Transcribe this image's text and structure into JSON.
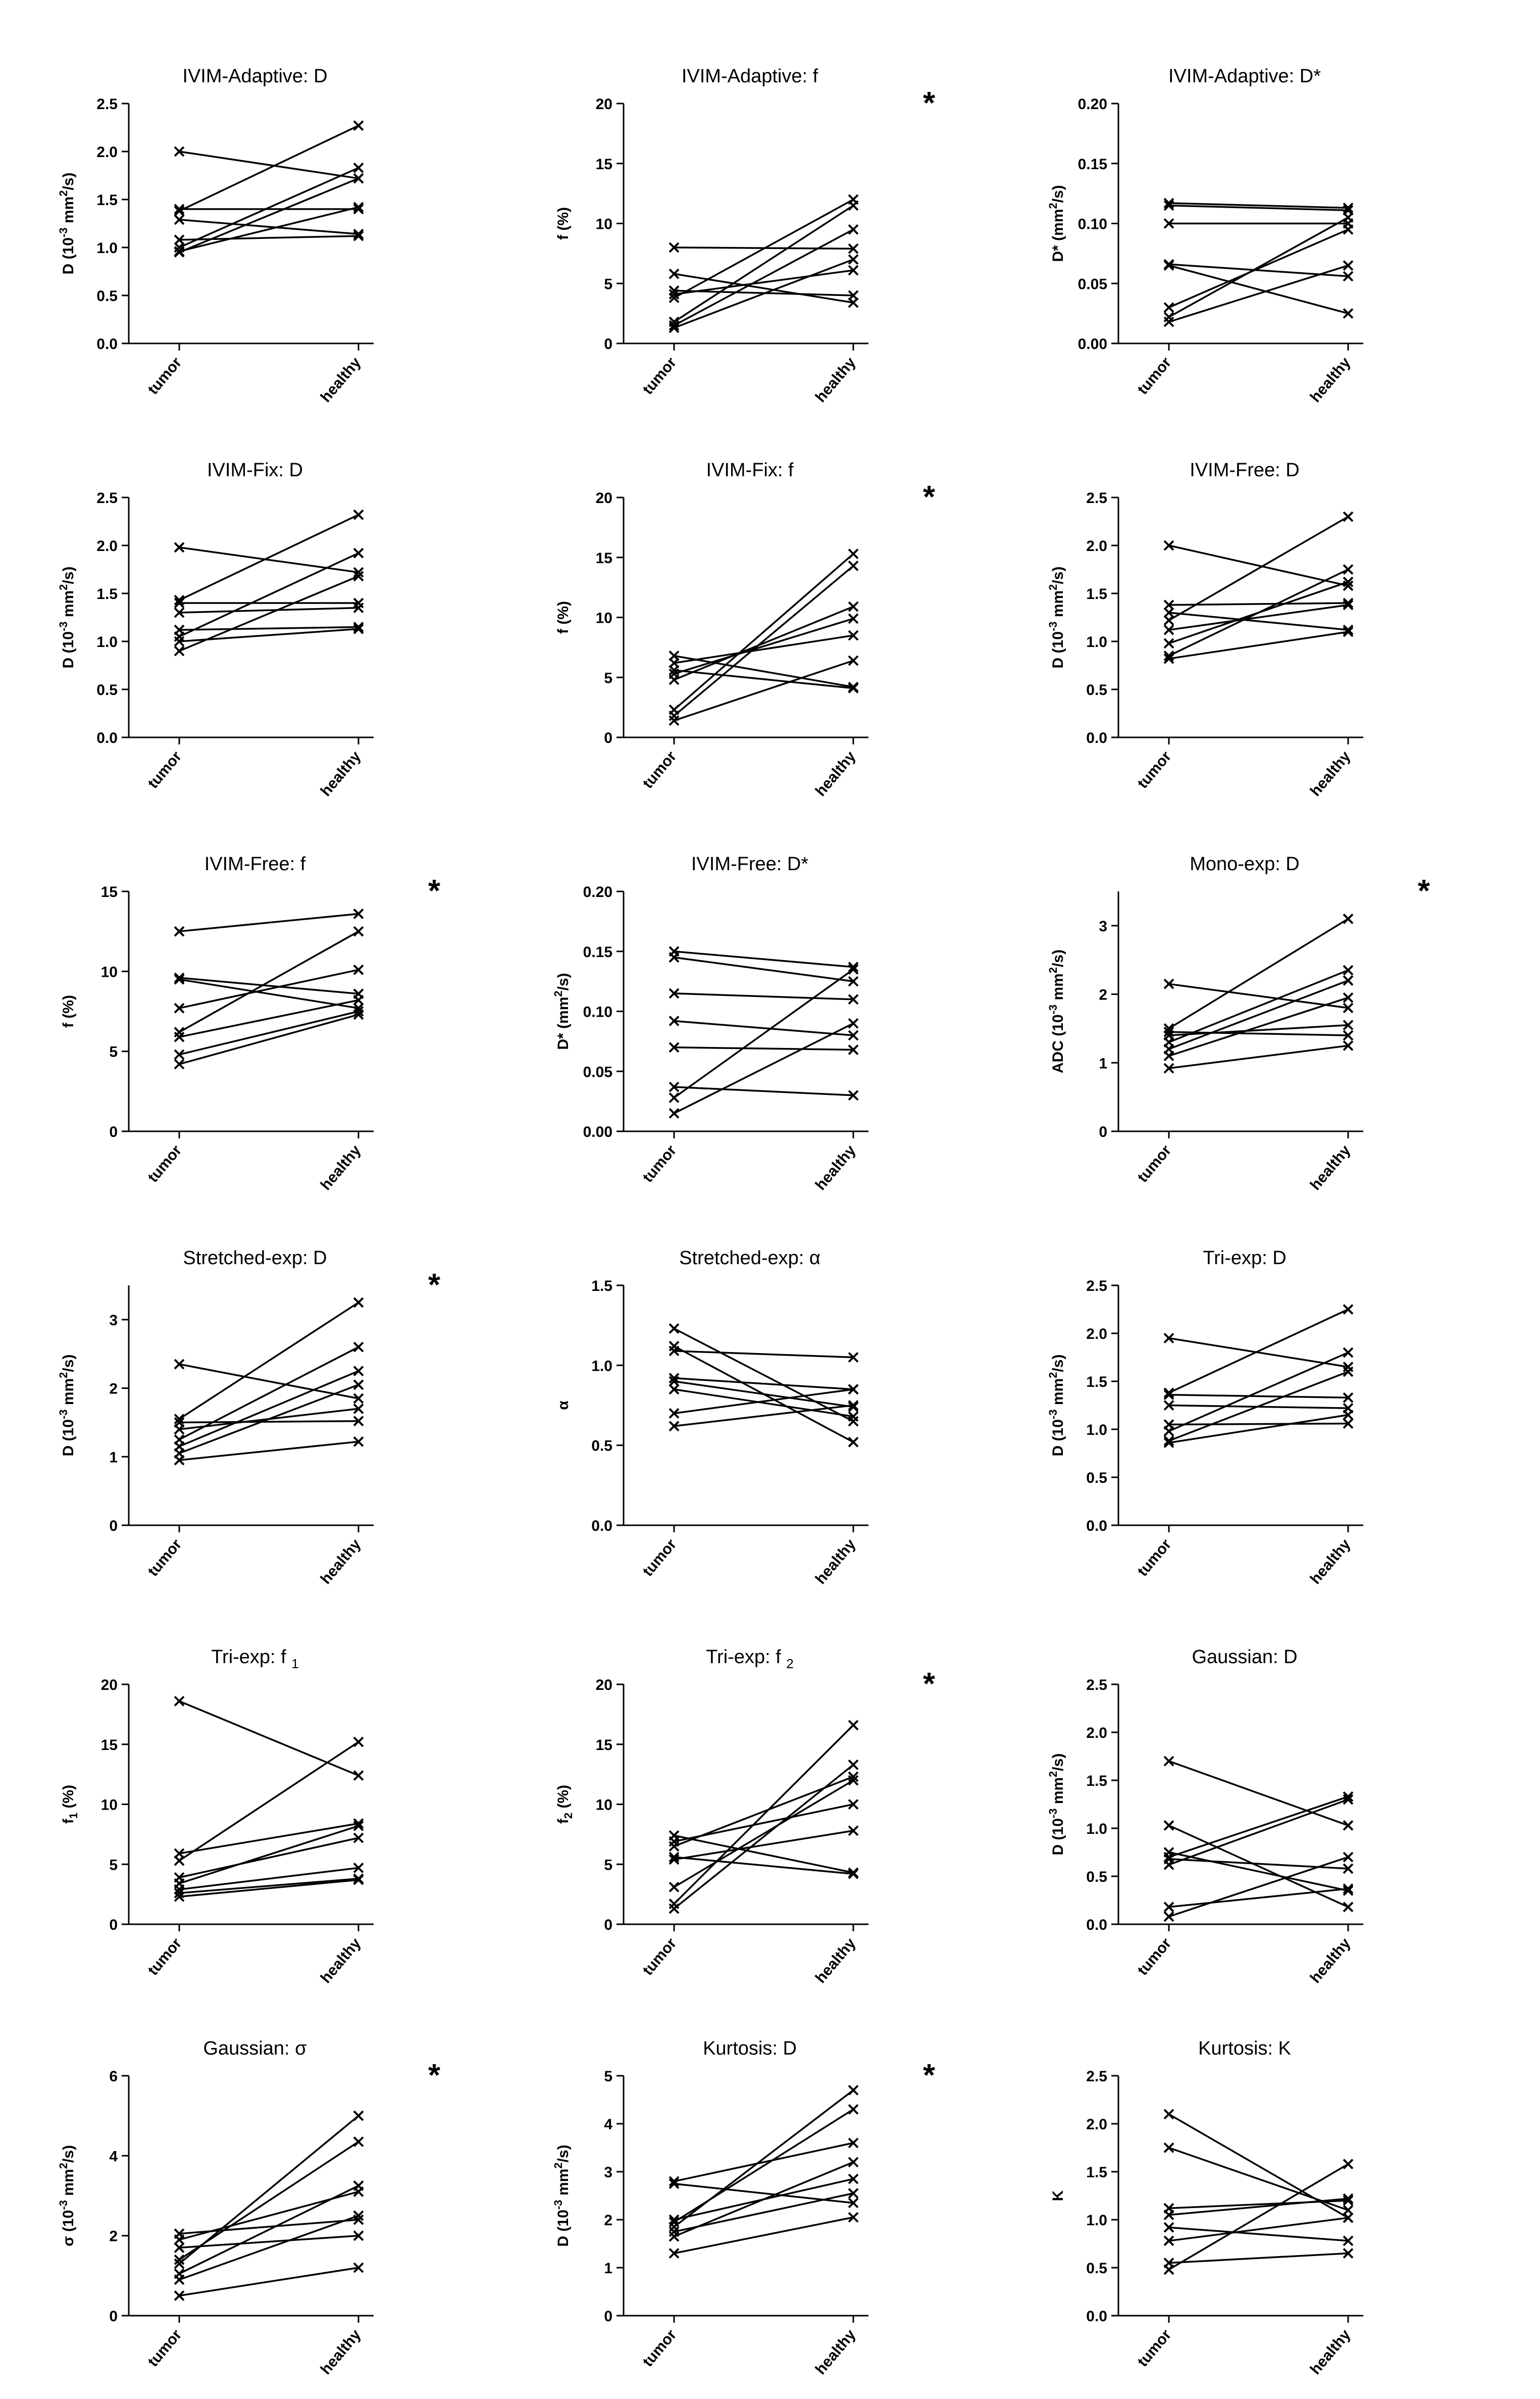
{
  "chart_data": [
    {
      "type": "line",
      "title": "IVIM-Adaptive: D",
      "significant": false,
      "ylabel": {
        "pre": "D (10",
        "sup": "-3",
        "post": " mm",
        "sup2": "2",
        "tail": "/s)"
      },
      "categories": [
        "tumor",
        "healthy"
      ],
      "ylim": [
        0,
        2.5
      ],
      "yticks": [
        "0.0",
        "0.5",
        "1.0",
        "1.5",
        "2.0",
        "2.5"
      ],
      "pairs": [
        [
          2.0,
          1.72
        ],
        [
          1.38,
          2.27
        ],
        [
          1.4,
          1.4
        ],
        [
          1.29,
          1.14
        ],
        [
          1.08,
          1.12
        ],
        [
          1.0,
          1.83
        ],
        [
          0.96,
          1.42
        ],
        [
          0.95,
          1.72
        ]
      ]
    },
    {
      "type": "line",
      "title": "IVIM-Adaptive: f",
      "significant": true,
      "ylabel": {
        "pre": "f (%)"
      },
      "categories": [
        "tumor",
        "healthy"
      ],
      "ylim": [
        0,
        20
      ],
      "yticks": [
        "0",
        "5",
        "10",
        "15",
        "20"
      ],
      "pairs": [
        [
          8.0,
          7.9
        ],
        [
          5.8,
          3.4
        ],
        [
          4.4,
          4.0
        ],
        [
          4.1,
          6.1
        ],
        [
          3.8,
          12.0
        ],
        [
          1.8,
          11.5
        ],
        [
          1.5,
          9.5
        ],
        [
          1.3,
          7.0
        ]
      ]
    },
    {
      "type": "line",
      "title": "IVIM-Adaptive: D*",
      "significant": false,
      "ylabel": {
        "pre": "D* (mm",
        "sup": "2",
        "post": "/s)"
      },
      "categories": [
        "tumor",
        "healthy"
      ],
      "ylim": [
        0,
        0.2
      ],
      "yticks": [
        "0.00",
        "0.05",
        "0.10",
        "0.15",
        "0.20"
      ],
      "pairs": [
        [
          0.117,
          0.113
        ],
        [
          0.115,
          0.111
        ],
        [
          0.1,
          0.1
        ],
        [
          0.066,
          0.056
        ],
        [
          0.065,
          0.025
        ],
        [
          0.03,
          0.095
        ],
        [
          0.022,
          0.105
        ],
        [
          0.018,
          0.065
        ]
      ]
    },
    {
      "type": "line",
      "title": "IVIM-Fix: D",
      "significant": false,
      "ylabel": {
        "pre": "D (10",
        "sup": "-3",
        "post": " mm",
        "sup2": "2",
        "tail": "/s)"
      },
      "categories": [
        "tumor",
        "healthy"
      ],
      "ylim": [
        0,
        2.5
      ],
      "yticks": [
        "0.0",
        "0.5",
        "1.0",
        "1.5",
        "2.0",
        "2.5"
      ],
      "pairs": [
        [
          1.98,
          1.72
        ],
        [
          1.43,
          2.32
        ],
        [
          1.4,
          1.4
        ],
        [
          1.3,
          1.35
        ],
        [
          1.12,
          1.15
        ],
        [
          1.05,
          1.92
        ],
        [
          1.0,
          1.13
        ],
        [
          0.9,
          1.68
        ]
      ]
    },
    {
      "type": "line",
      "title": "IVIM-Fix: f",
      "significant": true,
      "ylabel": {
        "pre": "f (%)"
      },
      "categories": [
        "tumor",
        "healthy"
      ],
      "ylim": [
        0,
        20
      ],
      "yticks": [
        "0",
        "5",
        "10",
        "15",
        "20"
      ],
      "pairs": [
        [
          6.8,
          4.2
        ],
        [
          6.2,
          8.5
        ],
        [
          5.6,
          4.1
        ],
        [
          5.3,
          9.9
        ],
        [
          4.8,
          10.9
        ],
        [
          2.3,
          15.3
        ],
        [
          1.8,
          14.3
        ],
        [
          1.4,
          6.4
        ]
      ]
    },
    {
      "type": "line",
      "title": "IVIM-Free: D",
      "significant": false,
      "ylabel": {
        "pre": "D (10",
        "sup": "-3",
        "post": " mm",
        "sup2": "2",
        "tail": "/s)"
      },
      "categories": [
        "tumor",
        "healthy"
      ],
      "ylim": [
        0,
        2.5
      ],
      "yticks": [
        "0.0",
        "0.5",
        "1.0",
        "1.5",
        "2.0",
        "2.5"
      ],
      "pairs": [
        [
          2.0,
          1.58
        ],
        [
          1.38,
          1.4
        ],
        [
          1.3,
          1.12
        ],
        [
          1.22,
          2.3
        ],
        [
          1.12,
          1.38
        ],
        [
          0.98,
          1.62
        ],
        [
          0.85,
          1.75
        ],
        [
          0.82,
          1.1
        ]
      ]
    },
    {
      "type": "line",
      "title": "IVIM-Free: f",
      "significant": true,
      "ylabel": {
        "pre": "f (%)"
      },
      "categories": [
        "tumor",
        "healthy"
      ],
      "ylim": [
        0,
        15
      ],
      "yticks": [
        "0",
        "5",
        "10",
        "15"
      ],
      "pairs": [
        [
          12.5,
          13.6
        ],
        [
          9.6,
          8.6
        ],
        [
          9.5,
          7.7
        ],
        [
          7.7,
          10.1
        ],
        [
          6.2,
          12.5
        ],
        [
          5.9,
          8.2
        ],
        [
          4.8,
          7.5
        ],
        [
          4.2,
          7.3
        ]
      ]
    },
    {
      "type": "line",
      "title": "IVIM-Free: D*",
      "significant": false,
      "ylabel": {
        "pre": "D* (mm",
        "sup": "2",
        "post": "/s)"
      },
      "categories": [
        "tumor",
        "healthy"
      ],
      "ylim": [
        0,
        0.2
      ],
      "yticks": [
        "0.00",
        "0.05",
        "0.10",
        "0.15",
        "0.20"
      ],
      "pairs": [
        [
          0.15,
          0.137
        ],
        [
          0.145,
          0.125
        ],
        [
          0.115,
          0.11
        ],
        [
          0.092,
          0.08
        ],
        [
          0.07,
          0.068
        ],
        [
          0.037,
          0.03
        ],
        [
          0.028,
          0.135
        ],
        [
          0.015,
          0.09
        ]
      ]
    },
    {
      "type": "line",
      "title": "Mono-exp: D",
      "significant": true,
      "ylabel": {
        "pre": "ADC (10",
        "sup": "-3",
        "post": " mm",
        "sup2": "2",
        "tail": "/s)"
      },
      "categories": [
        "tumor",
        "healthy"
      ],
      "ylim": [
        0,
        3.5
      ],
      "yticks": [
        "0",
        "1",
        "2",
        "3"
      ],
      "pairs": [
        [
          2.15,
          1.8
        ],
        [
          1.5,
          3.1
        ],
        [
          1.45,
          1.4
        ],
        [
          1.4,
          1.55
        ],
        [
          1.3,
          2.35
        ],
        [
          1.2,
          2.2
        ],
        [
          1.1,
          1.95
        ],
        [
          0.92,
          1.25
        ]
      ]
    },
    {
      "type": "line",
      "title": "Stretched-exp: D",
      "significant": true,
      "ylabel": {
        "pre": "D (10",
        "sup": "-3",
        "post": " mm",
        "sup2": "2",
        "tail": "/s)"
      },
      "categories": [
        "tumor",
        "healthy"
      ],
      "ylim": [
        0,
        3.5
      ],
      "yticks": [
        "0",
        "1",
        "2",
        "3"
      ],
      "pairs": [
        [
          2.35,
          1.85
        ],
        [
          1.55,
          3.25
        ],
        [
          1.5,
          1.52
        ],
        [
          1.4,
          1.7
        ],
        [
          1.25,
          2.6
        ],
        [
          1.15,
          2.25
        ],
        [
          1.05,
          2.05
        ],
        [
          0.95,
          1.22
        ]
      ]
    },
    {
      "type": "line",
      "title": "Stretched-exp:  α",
      "significant": false,
      "ylabel": {
        "pre": "α"
      },
      "categories": [
        "tumor",
        "healthy"
      ],
      "ylim": [
        0,
        1.5
      ],
      "yticks": [
        "0.0",
        "0.5",
        "1.0",
        "1.5"
      ],
      "pairs": [
        [
          1.23,
          0.65
        ],
        [
          1.12,
          0.52
        ],
        [
          1.09,
          1.05
        ],
        [
          0.92,
          0.85
        ],
        [
          0.9,
          0.74
        ],
        [
          0.85,
          0.68
        ],
        [
          0.7,
          0.85
        ],
        [
          0.62,
          0.75
        ]
      ]
    },
    {
      "type": "line",
      "title": "Tri-exp: D",
      "significant": false,
      "ylabel": {
        "pre": "D (10",
        "sup": "-3",
        "post": " mm",
        "sup2": "2",
        "tail": "/s)"
      },
      "categories": [
        "tumor",
        "healthy"
      ],
      "ylim": [
        0,
        2.5
      ],
      "yticks": [
        "0.0",
        "0.5",
        "1.0",
        "1.5",
        "2.0",
        "2.5"
      ],
      "pairs": [
        [
          1.95,
          1.65
        ],
        [
          1.38,
          2.25
        ],
        [
          1.36,
          1.33
        ],
        [
          1.25,
          1.22
        ],
        [
          1.05,
          1.06
        ],
        [
          0.98,
          1.8
        ],
        [
          0.88,
          1.6
        ],
        [
          0.86,
          1.15
        ]
      ]
    },
    {
      "type": "line",
      "title": "Tri-exp: f ",
      "titleSub": "1",
      "significant": false,
      "ylabel": {
        "pre": "f",
        "sub": "1",
        "post": " (%)"
      },
      "categories": [
        "tumor",
        "healthy"
      ],
      "ylim": [
        0,
        20
      ],
      "yticks": [
        "0",
        "5",
        "10",
        "15",
        "20"
      ],
      "pairs": [
        [
          18.6,
          12.4
        ],
        [
          5.9,
          8.4
        ],
        [
          5.3,
          15.2
        ],
        [
          3.9,
          7.2
        ],
        [
          3.4,
          8.2
        ],
        [
          2.9,
          4.7
        ],
        [
          2.6,
          3.8
        ],
        [
          2.3,
          3.7
        ]
      ]
    },
    {
      "type": "line",
      "title": "Tri-exp: f ",
      "titleSub": "2",
      "significant": true,
      "ylabel": {
        "pre": "f",
        "sub": "2",
        "post": " (%)"
      },
      "categories": [
        "tumor",
        "healthy"
      ],
      "ylim": [
        0,
        20
      ],
      "yticks": [
        "0",
        "5",
        "10",
        "15",
        "20"
      ],
      "pairs": [
        [
          7.4,
          4.3
        ],
        [
          6.9,
          10.0
        ],
        [
          6.5,
          12.3
        ],
        [
          5.6,
          4.2
        ],
        [
          5.4,
          7.8
        ],
        [
          3.1,
          12.0
        ],
        [
          1.7,
          16.6
        ],
        [
          1.3,
          13.3
        ]
      ]
    },
    {
      "type": "line",
      "title": "Gaussian: D",
      "significant": false,
      "ylabel": {
        "pre": "D (10",
        "sup": "-3",
        "post": " mm",
        "sup2": "2",
        "tail": "/s)"
      },
      "categories": [
        "tumor",
        "healthy"
      ],
      "ylim": [
        0,
        2.5
      ],
      "yticks": [
        "0.0",
        "0.5",
        "1.0",
        "1.5",
        "2.0",
        "2.5"
      ],
      "pairs": [
        [
          1.7,
          1.03
        ],
        [
          1.03,
          0.18
        ],
        [
          0.75,
          0.35
        ],
        [
          0.7,
          1.33
        ],
        [
          0.68,
          0.58
        ],
        [
          0.62,
          1.3
        ],
        [
          0.18,
          0.37
        ],
        [
          0.08,
          0.7
        ]
      ]
    },
    {
      "type": "line",
      "title": "Gaussian:  σ",
      "significant": true,
      "ylabel": {
        "pre": "σ (10",
        "sup": "-3",
        "post": " mm",
        "sup2": "2",
        "tail": "/s)"
      },
      "categories": [
        "tumor",
        "healthy"
      ],
      "ylim": [
        0,
        6
      ],
      "yticks": [
        "0",
        "2",
        "4",
        "6"
      ],
      "pairs": [
        [
          2.05,
          2.4
        ],
        [
          1.9,
          3.1
        ],
        [
          1.7,
          2.0
        ],
        [
          1.4,
          4.35
        ],
        [
          1.3,
          5.0
        ],
        [
          1.05,
          3.25
        ],
        [
          0.9,
          2.5
        ],
        [
          0.5,
          1.2
        ]
      ]
    },
    {
      "type": "line",
      "title": "Kurtosis: D",
      "significant": true,
      "ylabel": {
        "pre": "D (10",
        "sup": "-3",
        "post": " mm",
        "sup2": "2",
        "tail": "/s)"
      },
      "categories": [
        "tumor",
        "healthy"
      ],
      "ylim": [
        0,
        5
      ],
      "yticks": [
        "0",
        "1",
        "2",
        "3",
        "4",
        "5"
      ],
      "pairs": [
        [
          2.8,
          3.6
        ],
        [
          2.75,
          2.35
        ],
        [
          2.0,
          2.85
        ],
        [
          1.95,
          4.3
        ],
        [
          1.85,
          4.7
        ],
        [
          1.75,
          2.55
        ],
        [
          1.65,
          3.2
        ],
        [
          1.3,
          2.05
        ]
      ]
    },
    {
      "type": "line",
      "title": "Kurtosis: K",
      "significant": false,
      "ylabel": {
        "pre": "K"
      },
      "categories": [
        "tumor",
        "healthy"
      ],
      "ylim": [
        0,
        2.5
      ],
      "yticks": [
        "0.0",
        "0.5",
        "1.0",
        "1.5",
        "2.0",
        "2.5"
      ],
      "pairs": [
        [
          2.1,
          1.02
        ],
        [
          1.75,
          1.1
        ],
        [
          1.12,
          1.2
        ],
        [
          1.05,
          1.22
        ],
        [
          0.92,
          0.78
        ],
        [
          0.78,
          1.02
        ],
        [
          0.55,
          0.65
        ],
        [
          0.48,
          1.58
        ]
      ]
    }
  ]
}
